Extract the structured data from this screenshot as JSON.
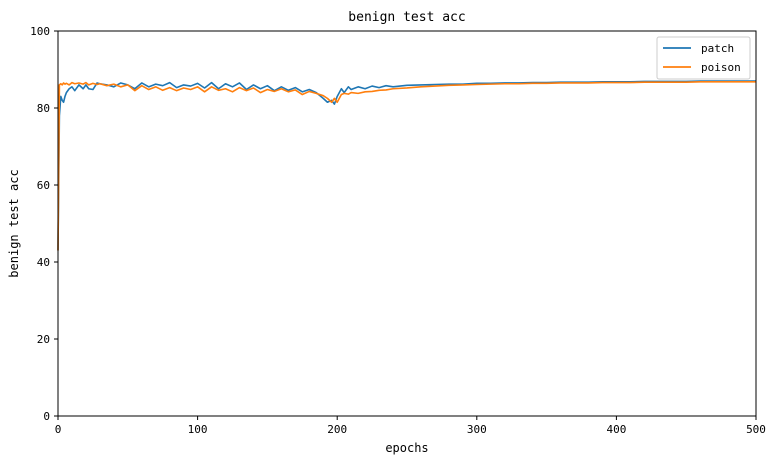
{
  "chart_data": {
    "type": "line",
    "title": "benign test acc",
    "xlabel": "epochs",
    "ylabel": "benign test acc",
    "xlim": [
      0,
      500
    ],
    "ylim": [
      0,
      100
    ],
    "xticks": [
      "0",
      "100",
      "200",
      "300",
      "400",
      "500"
    ],
    "yticks": [
      "0",
      "20",
      "40",
      "60",
      "80",
      "100"
    ],
    "grid": false,
    "legend_position": "top-right",
    "series": [
      {
        "name": "patch",
        "color": "#1f77b4",
        "points": [
          [
            0,
            43
          ],
          [
            1,
            78
          ],
          [
            2,
            83
          ],
          [
            3,
            82
          ],
          [
            4,
            81.5
          ],
          [
            5,
            83
          ],
          [
            6,
            84
          ],
          [
            8,
            85
          ],
          [
            10,
            85.5
          ],
          [
            12,
            84.5
          ],
          [
            15,
            86
          ],
          [
            18,
            85
          ],
          [
            20,
            86
          ],
          [
            22,
            85
          ],
          [
            25,
            84.8
          ],
          [
            28,
            86.5
          ],
          [
            30,
            86.3
          ],
          [
            35,
            86
          ],
          [
            40,
            85.5
          ],
          [
            45,
            86.5
          ],
          [
            50,
            86
          ],
          [
            55,
            85
          ],
          [
            60,
            86.5
          ],
          [
            65,
            85.5
          ],
          [
            70,
            86.2
          ],
          [
            75,
            85.8
          ],
          [
            80,
            86.6
          ],
          [
            85,
            85.3
          ],
          [
            90,
            86
          ],
          [
            95,
            85.7
          ],
          [
            100,
            86.4
          ],
          [
            105,
            85.2
          ],
          [
            110,
            86.6
          ],
          [
            115,
            85
          ],
          [
            120,
            86.3
          ],
          [
            125,
            85.5
          ],
          [
            130,
            86.5
          ],
          [
            135,
            84.8
          ],
          [
            140,
            86
          ],
          [
            145,
            85
          ],
          [
            150,
            85.8
          ],
          [
            155,
            84.5
          ],
          [
            160,
            85.5
          ],
          [
            165,
            84.6
          ],
          [
            170,
            85.3
          ],
          [
            175,
            84.2
          ],
          [
            180,
            84.8
          ],
          [
            185,
            84
          ],
          [
            190,
            82.5
          ],
          [
            193,
            81.5
          ],
          [
            196,
            82
          ],
          [
            198,
            81
          ],
          [
            200,
            83
          ],
          [
            203,
            85
          ],
          [
            205,
            84
          ],
          [
            208,
            85.5
          ],
          [
            210,
            84.8
          ],
          [
            215,
            85.5
          ],
          [
            220,
            85
          ],
          [
            225,
            85.7
          ],
          [
            230,
            85.3
          ],
          [
            235,
            85.8
          ],
          [
            240,
            85.5
          ],
          [
            250,
            85.9
          ],
          [
            260,
            86
          ],
          [
            270,
            86.1
          ],
          [
            280,
            86.2
          ],
          [
            290,
            86.2
          ],
          [
            300,
            86.4
          ],
          [
            310,
            86.4
          ],
          [
            320,
            86.5
          ],
          [
            330,
            86.5
          ],
          [
            340,
            86.6
          ],
          [
            350,
            86.6
          ],
          [
            360,
            86.7
          ],
          [
            370,
            86.7
          ],
          [
            380,
            86.7
          ],
          [
            390,
            86.8
          ],
          [
            400,
            86.8
          ],
          [
            410,
            86.8
          ],
          [
            420,
            86.9
          ],
          [
            430,
            86.9
          ],
          [
            440,
            86.9
          ],
          [
            450,
            86.9
          ],
          [
            460,
            87
          ],
          [
            470,
            87
          ],
          [
            480,
            87
          ],
          [
            490,
            87
          ],
          [
            500,
            87
          ]
        ]
      },
      {
        "name": "poison",
        "color": "#ff7f0e",
        "points": [
          [
            0,
            43
          ],
          [
            1,
            86
          ],
          [
            2,
            86.3
          ],
          [
            3,
            86
          ],
          [
            4,
            86.5
          ],
          [
            5,
            86.2
          ],
          [
            6,
            86.4
          ],
          [
            8,
            86
          ],
          [
            10,
            86.6
          ],
          [
            12,
            86.3
          ],
          [
            15,
            86.5
          ],
          [
            18,
            86.2
          ],
          [
            20,
            86.6
          ],
          [
            22,
            86
          ],
          [
            25,
            86.4
          ],
          [
            28,
            86.1
          ],
          [
            30,
            86.3
          ],
          [
            35,
            85.8
          ],
          [
            40,
            86.2
          ],
          [
            45,
            85.5
          ],
          [
            50,
            86
          ],
          [
            55,
            84.5
          ],
          [
            60,
            85.8
          ],
          [
            65,
            84.8
          ],
          [
            70,
            85.5
          ],
          [
            75,
            84.6
          ],
          [
            80,
            85.3
          ],
          [
            85,
            84.5
          ],
          [
            90,
            85.2
          ],
          [
            95,
            84.8
          ],
          [
            100,
            85.5
          ],
          [
            105,
            84.2
          ],
          [
            110,
            85.5
          ],
          [
            115,
            84.6
          ],
          [
            120,
            85
          ],
          [
            125,
            84.2
          ],
          [
            130,
            85.3
          ],
          [
            135,
            84.5
          ],
          [
            140,
            85.2
          ],
          [
            145,
            84
          ],
          [
            150,
            84.8
          ],
          [
            155,
            84.3
          ],
          [
            160,
            85
          ],
          [
            165,
            84.2
          ],
          [
            170,
            84.7
          ],
          [
            175,
            83.5
          ],
          [
            180,
            84.3
          ],
          [
            185,
            83.8
          ],
          [
            190,
            83.2
          ],
          [
            193,
            82.5
          ],
          [
            196,
            81.5
          ],
          [
            198,
            82.5
          ],
          [
            200,
            81.5
          ],
          [
            203,
            83.5
          ],
          [
            205,
            83.8
          ],
          [
            208,
            83.6
          ],
          [
            210,
            84
          ],
          [
            215,
            83.8
          ],
          [
            220,
            84.2
          ],
          [
            225,
            84.3
          ],
          [
            230,
            84.6
          ],
          [
            235,
            84.7
          ],
          [
            240,
            85
          ],
          [
            250,
            85.2
          ],
          [
            260,
            85.5
          ],
          [
            270,
            85.7
          ],
          [
            280,
            85.9
          ],
          [
            290,
            86
          ],
          [
            300,
            86.1
          ],
          [
            310,
            86.2
          ],
          [
            320,
            86.3
          ],
          [
            330,
            86.3
          ],
          [
            340,
            86.4
          ],
          [
            350,
            86.4
          ],
          [
            360,
            86.5
          ],
          [
            370,
            86.5
          ],
          [
            380,
            86.5
          ],
          [
            390,
            86.6
          ],
          [
            400,
            86.6
          ],
          [
            410,
            86.6
          ],
          [
            420,
            86.7
          ],
          [
            430,
            86.7
          ],
          [
            440,
            86.7
          ],
          [
            450,
            86.7
          ],
          [
            460,
            86.8
          ],
          [
            470,
            86.8
          ],
          [
            480,
            86.8
          ],
          [
            490,
            86.8
          ],
          [
            500,
            86.8
          ]
        ]
      }
    ]
  }
}
